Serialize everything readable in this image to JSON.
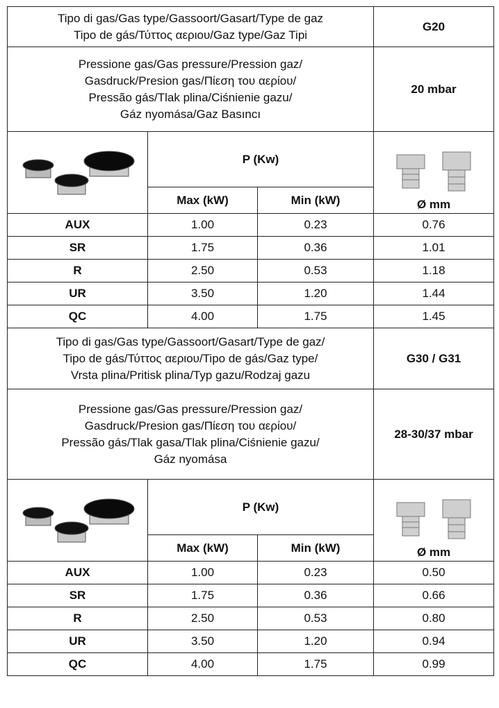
{
  "sections": [
    {
      "gas_type_label": "Tipo di gas/Gas type/Gassoort/Gasart/Type de gaz\nTipo de gás/Τύττος αεριου/Gaz type/Gaz Tipi",
      "gas_type": "G20",
      "pressure_label": "Pressione gas/Gas pressure/Pression gaz/\nGasdruck/Presion gas/Πίεση  του αερίου/\nPressão gás/Tlak plina/Ciśnienie gazu/\nGáz nyomása/Gaz Basıncı",
      "pressure": "20 mbar",
      "power_header": "P (Kw)",
      "max_header": "Max (kW)",
      "min_header": "Min (kW)",
      "diameter_header": "Ø mm",
      "rows": [
        [
          "AUX",
          "1.00",
          "0.23",
          "0.76"
        ],
        [
          "SR",
          "1.75",
          "0.36",
          "1.01"
        ],
        [
          "R",
          "2.50",
          "0.53",
          "1.18"
        ],
        [
          "UR",
          "3.50",
          "1.20",
          "1.44"
        ],
        [
          "QC",
          "4.00",
          "1.75",
          "1.45"
        ]
      ]
    },
    {
      "gas_type_label": "Tipo di gas/Gas type/Gassoort/Gasart/Type de gaz/\nTipo de gás/Τύττος αεριου/Tipo de gás/Gaz type/\nVrsta plina/Pritisk plina/Typ gazu/Rodzaj gazu",
      "gas_type": "G30 / G31",
      "pressure_label": "Pressione gas/Gas pressure/Pression gaz/\nGasdruck/Presion gas/Πίεση  του αερίου/\nPressão gás/Tlak gasa/Tlak plina/Ciśnienie gazu/\nGáz nyomása",
      "pressure": "28-30/37 mbar",
      "power_header": "P (Kw)",
      "max_header": "Max (kW)",
      "min_header": "Min (kW)",
      "diameter_header": "Ø mm",
      "rows": [
        [
          "AUX",
          "1.00",
          "0.23",
          "0.50"
        ],
        [
          "SR",
          "1.75",
          "0.36",
          "0.66"
        ],
        [
          "R",
          "2.50",
          "0.53",
          "0.80"
        ],
        [
          "UR",
          "3.50",
          "1.20",
          "0.94"
        ],
        [
          "QC",
          "4.00",
          "1.75",
          "0.99"
        ]
      ]
    }
  ]
}
